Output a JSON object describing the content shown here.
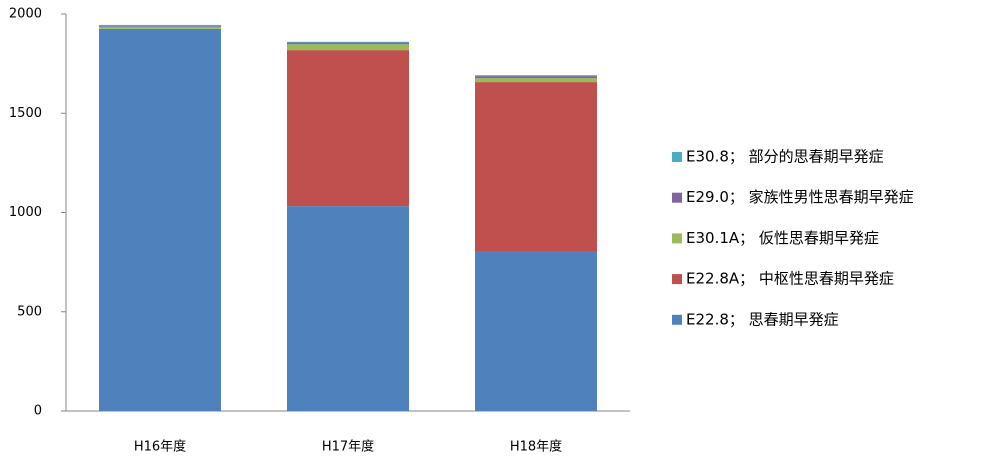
{
  "chart_data": {
    "type": "stacked_bar",
    "categories": [
      "H16年度",
      "H17年度",
      "H18年度"
    ],
    "series": [
      {
        "name": "E22.8； 思春期早発症",
        "color": "#4f81bd",
        "values": [
          1925,
          1032,
          806
        ]
      },
      {
        "name": "E22.8A； 中枢性思春期早発症",
        "color": "#c0504d",
        "values": [
          0,
          786,
          851
        ]
      },
      {
        "name": "E30.1A； 仮性思春期早発症",
        "color": "#9bbb59",
        "values": [
          8,
          30,
          20
        ]
      },
      {
        "name": "E29.0； 家族性男性思春期早発症",
        "color": "#8064a2",
        "values": [
          5,
          8,
          10
        ]
      },
      {
        "name": "E30.8； 部分的思春期早発症",
        "color": "#4bacc6",
        "values": [
          7,
          4,
          5
        ]
      }
    ],
    "ylim": [
      0,
      2000
    ],
    "yticks": [
      0,
      500,
      1000,
      1500,
      2000
    ],
    "grid": false,
    "legend": "right"
  }
}
